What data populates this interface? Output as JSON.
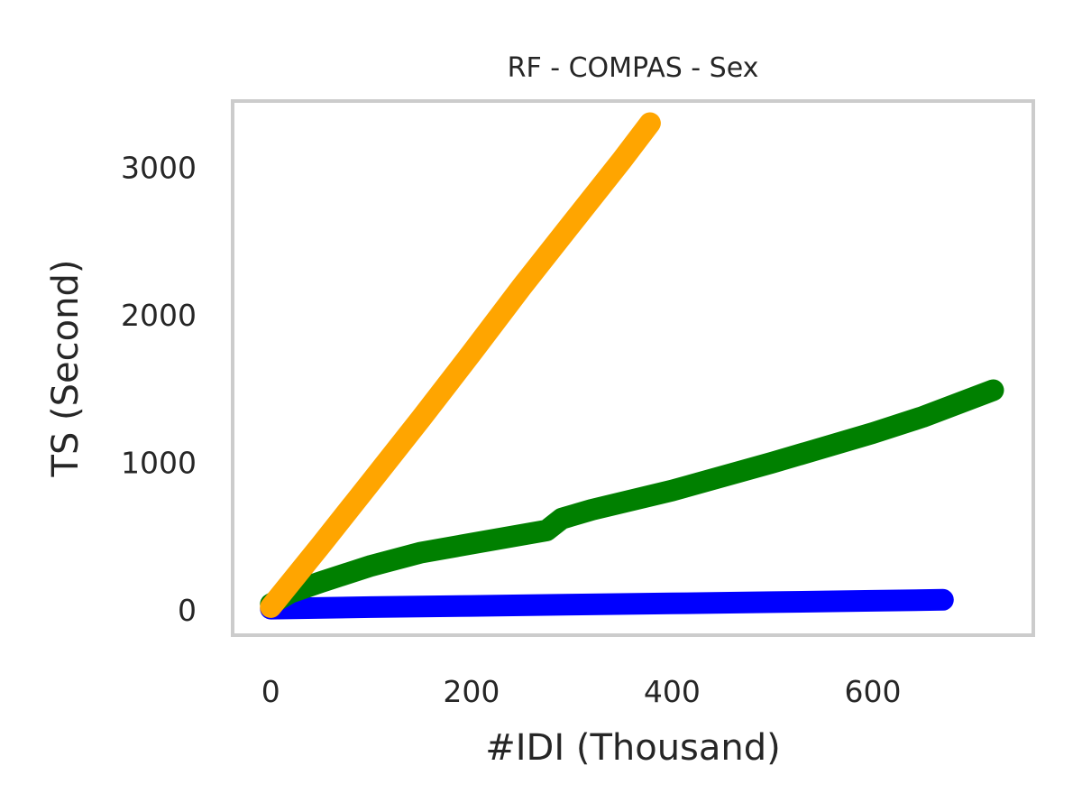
{
  "chart_data": {
    "type": "line",
    "title": "RF - COMPAS - Sex",
    "xlabel": "#IDI (Thousand)",
    "ylabel": "TS (Second)",
    "xlim": [
      -38,
      760
    ],
    "ylim": [
      -170,
      3450
    ],
    "xticks": [
      0,
      200,
      400,
      600
    ],
    "yticks": [
      0,
      1000,
      2000,
      3000
    ],
    "grid": false,
    "series": [
      {
        "color": "#ffa500",
        "x": [
          0,
          50,
          100,
          150,
          200,
          250,
          300,
          350,
          378
        ],
        "y": [
          20,
          440,
          870,
          1300,
          1740,
          2190,
          2620,
          3050,
          3300
        ]
      },
      {
        "color": "#008000",
        "x": [
          0,
          20,
          50,
          100,
          150,
          200,
          250,
          275,
          290,
          320,
          400,
          500,
          600,
          650,
          720
        ],
        "y": [
          40,
          120,
          190,
          300,
          390,
          450,
          510,
          540,
          620,
          680,
          810,
          1000,
          1200,
          1310,
          1490
        ]
      },
      {
        "color": "#0000ff",
        "x": [
          0,
          100,
          200,
          300,
          400,
          500,
          600,
          670
        ],
        "y": [
          10,
          20,
          28,
          37,
          45,
          54,
          63,
          70
        ]
      }
    ]
  }
}
